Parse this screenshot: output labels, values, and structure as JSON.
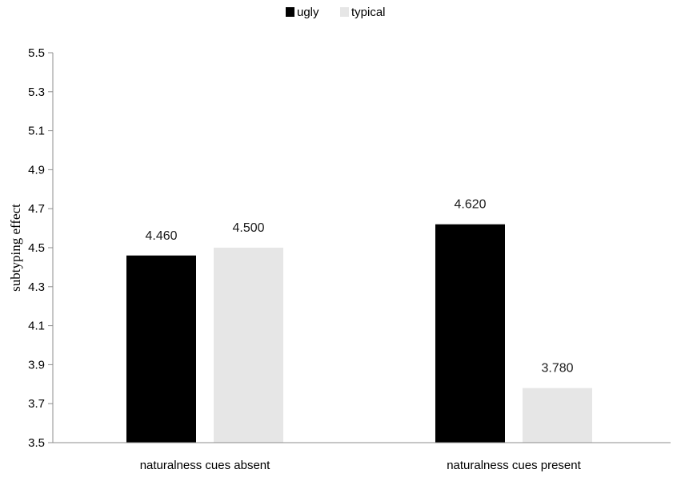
{
  "chart_data": {
    "type": "bar",
    "categories": [
      "naturalness cues absent",
      "naturalness cues present"
    ],
    "series": [
      {
        "name": "ugly",
        "values": [
          4.46,
          4.62
        ],
        "labels": [
          "4.460",
          "4.620"
        ],
        "color": "#000000"
      },
      {
        "name": "typical",
        "values": [
          4.5,
          3.78
        ],
        "labels": [
          "4.500",
          "3.780"
        ],
        "color": "#e6e6e6"
      }
    ],
    "ylabel": "subtyping effect",
    "ylim": [
      3.5,
      5.5
    ],
    "yticks": [
      "3.5",
      "3.7",
      "3.9",
      "4.1",
      "4.3",
      "4.5",
      "4.7",
      "4.9",
      "5.1",
      "5.3",
      "5.5"
    ],
    "grid": false,
    "legend_position": "top-center"
  }
}
